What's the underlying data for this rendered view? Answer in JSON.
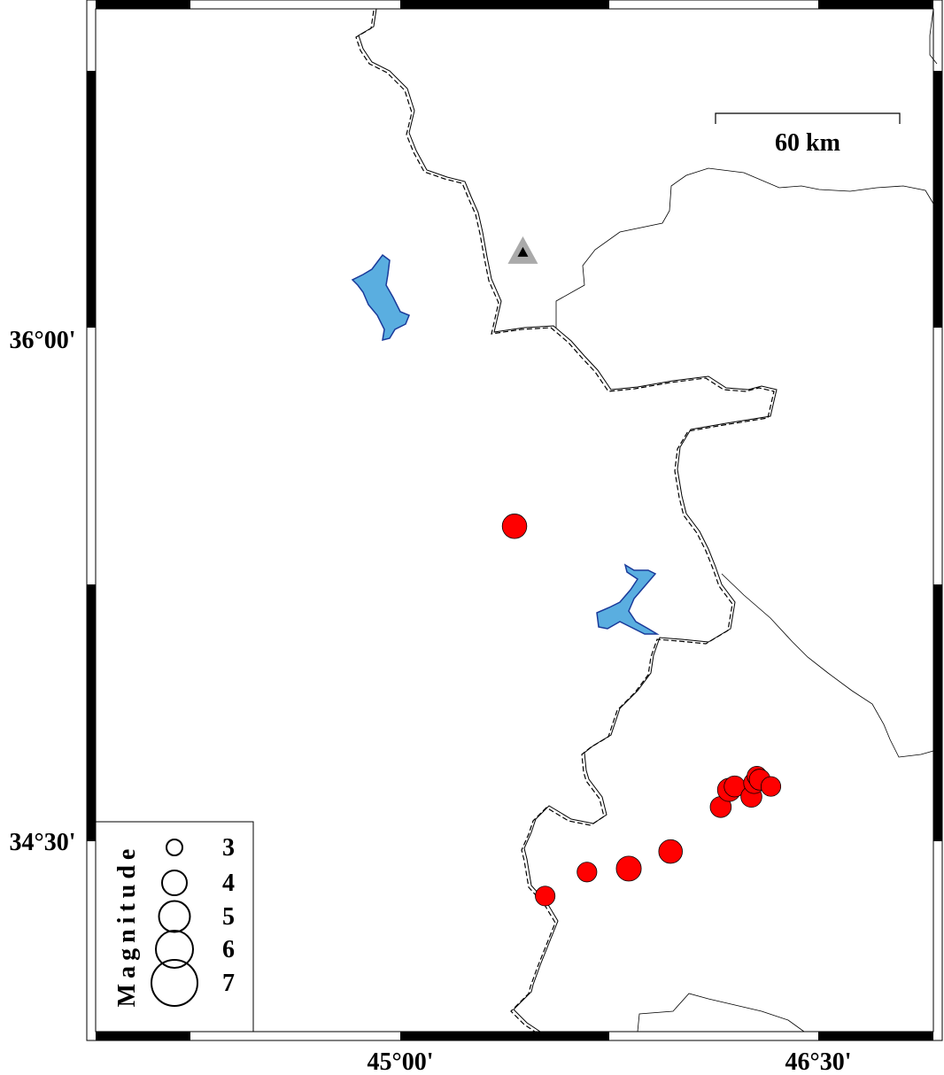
{
  "map": {
    "axis_labels": {
      "lat": [
        "36°00'",
        "34°30'"
      ],
      "lon": [
        "45°00'",
        "46°30'"
      ]
    },
    "extent": {
      "lon_min": 43.91,
      "lon_max": 46.91,
      "lat_min": 33.94,
      "lat_max": 36.93
    },
    "colors": {
      "earthquake": "#ff0000",
      "water": "#5aaee0",
      "station": "#aaaaaa",
      "frame": "#000000"
    },
    "scale_bar": {
      "label": "60 km"
    },
    "station": {
      "lon": 45.44,
      "lat": 36.22,
      "icon": "triangle-icon"
    },
    "earthquakes": [
      {
        "lon": 45.41,
        "lat": 35.42,
        "mag": 4.5
      },
      {
        "lon": 45.52,
        "lat": 34.34,
        "mag": 3.6
      },
      {
        "lon": 45.67,
        "lat": 34.41,
        "mag": 3.6
      },
      {
        "lon": 45.82,
        "lat": 34.42,
        "mag": 4.6
      },
      {
        "lon": 45.97,
        "lat": 34.47,
        "mag": 4.3
      },
      {
        "lon": 46.15,
        "lat": 34.6,
        "mag": 3.8
      },
      {
        "lon": 46.18,
        "lat": 34.65,
        "mag": 4.2
      },
      {
        "lon": 46.2,
        "lat": 34.66,
        "mag": 3.8
      },
      {
        "lon": 46.26,
        "lat": 34.63,
        "mag": 3.8
      },
      {
        "lon": 46.27,
        "lat": 34.67,
        "mag": 3.8
      },
      {
        "lon": 46.28,
        "lat": 34.69,
        "mag": 3.6
      },
      {
        "lon": 46.29,
        "lat": 34.68,
        "mag": 3.8
      },
      {
        "lon": 46.33,
        "lat": 34.66,
        "mag": 3.6
      }
    ],
    "legend": {
      "title": "Magnitude",
      "entries": [
        {
          "mag": 3,
          "label": "3"
        },
        {
          "mag": 4,
          "label": "4"
        },
        {
          "mag": 5,
          "label": "5"
        },
        {
          "mag": 6,
          "label": "6"
        },
        {
          "mag": 7,
          "label": "7"
        }
      ]
    }
  }
}
